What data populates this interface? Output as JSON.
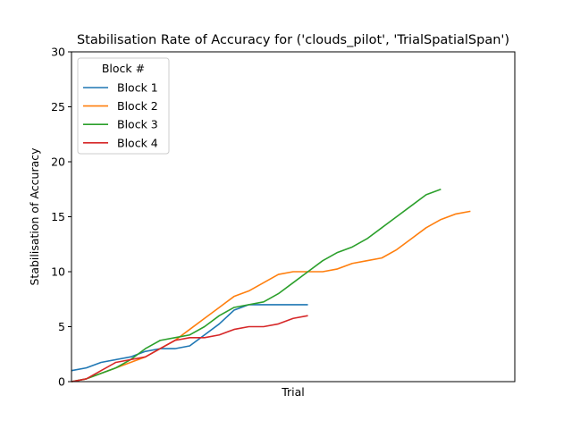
{
  "chart_data": {
    "type": "line",
    "title": "Stabilisation Rate of Accuracy for ('clouds_pilot', 'TrialSpatialSpan')",
    "xlabel": "Trial",
    "ylabel": "Stabilisation of Accuracy",
    "ylim": [
      0,
      30
    ],
    "yticks": [
      "0",
      "5",
      "10",
      "15",
      "20",
      "25",
      "30"
    ],
    "xlim": [
      0,
      30
    ],
    "grid": false,
    "legend": {
      "title": "Block #",
      "placement": "top-left"
    },
    "series": [
      {
        "name": "Block 1",
        "color": "#1f77b4",
        "x": [
          0,
          1,
          2,
          3,
          4,
          5,
          6,
          7,
          8,
          9,
          10,
          11,
          12,
          13,
          14,
          15,
          16
        ],
        "y": [
          1.0,
          1.25,
          1.75,
          2.0,
          2.25,
          2.75,
          3.0,
          3.0,
          3.25,
          4.25,
          5.25,
          6.5,
          7.0,
          7.0,
          7.0,
          7.0,
          7.0
        ]
      },
      {
        "name": "Block 2",
        "color": "#ff7f0e",
        "x": [
          0,
          1,
          2,
          3,
          4,
          5,
          6,
          7,
          8,
          9,
          10,
          11,
          12,
          13,
          14,
          15,
          16,
          17,
          18,
          19,
          20,
          21,
          22,
          23,
          24,
          25,
          26,
          27
        ],
        "y": [
          0,
          0.25,
          0.75,
          1.25,
          1.75,
          2.25,
          3.0,
          3.75,
          4.75,
          5.75,
          6.75,
          7.75,
          8.25,
          9.0,
          9.75,
          10.0,
          10.0,
          10.0,
          10.25,
          10.75,
          11.0,
          11.25,
          12.0,
          13.0,
          14.0,
          14.75,
          15.25,
          15.5
        ]
      },
      {
        "name": "Block 3",
        "color": "#2ca02c",
        "x": [
          0,
          1,
          2,
          3,
          4,
          5,
          6,
          7,
          8,
          9,
          10,
          11,
          12,
          13,
          14,
          15,
          16,
          17,
          18,
          19,
          20,
          21,
          22,
          23,
          24,
          25
        ],
        "y": [
          0,
          0.25,
          0.75,
          1.25,
          2.0,
          3.0,
          3.75,
          4.0,
          4.25,
          5.0,
          6.0,
          6.75,
          7.0,
          7.25,
          8.0,
          9.0,
          10.0,
          11.0,
          11.75,
          12.25,
          13.0,
          14.0,
          15.0,
          16.0,
          17.0,
          17.5
        ]
      },
      {
        "name": "Block 4",
        "color": "#d62728",
        "x": [
          0,
          1,
          2,
          3,
          4,
          5,
          6,
          7,
          8,
          9,
          10,
          11,
          12,
          13,
          14,
          15,
          16
        ],
        "y": [
          0,
          0.25,
          1.0,
          1.75,
          2.0,
          2.25,
          3.0,
          3.75,
          4.0,
          4.0,
          4.25,
          4.75,
          5.0,
          5.0,
          5.25,
          5.75,
          6.0
        ]
      }
    ]
  }
}
